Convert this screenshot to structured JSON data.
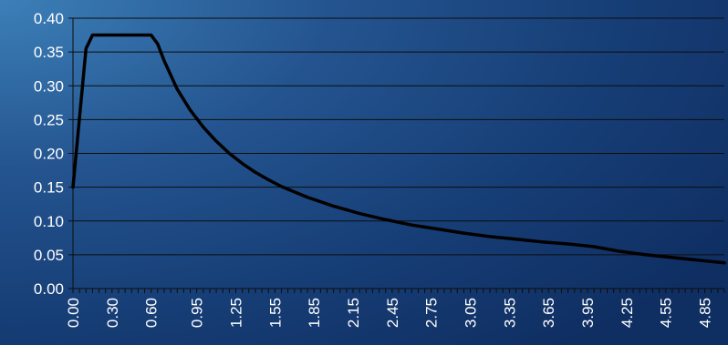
{
  "colors": {
    "line": "#000000",
    "grid": "#0d0d0d",
    "tick_text": "#ffffff",
    "background_light": "#3c7fb8",
    "background_dark": "#0f2f63"
  },
  "chart_data": {
    "type": "line",
    "title": "",
    "xlabel": "",
    "ylabel": "",
    "xlim": [
      0.0,
      5.0
    ],
    "ylim": [
      0.0,
      0.4
    ],
    "grid": "horizontal",
    "legend": "none",
    "y_ticks": [
      "0.00",
      "0.05",
      "0.10",
      "0.15",
      "0.20",
      "0.25",
      "0.30",
      "0.35",
      "0.40"
    ],
    "x_ticks": [
      "0.00",
      "0.30",
      "0.60",
      "0.95",
      "1.25",
      "1.55",
      "1.85",
      "2.15",
      "2.45",
      "2.75",
      "3.05",
      "3.35",
      "3.65",
      "3.95",
      "4.25",
      "4.55",
      "4.85"
    ],
    "x_tick_values": [
      0.0,
      0.3,
      0.6,
      0.95,
      1.25,
      1.55,
      1.85,
      2.15,
      2.45,
      2.75,
      3.05,
      3.35,
      3.65,
      3.95,
      4.25,
      4.55,
      4.85
    ],
    "series": [
      {
        "x": [
          0.0,
          0.1,
          0.15,
          0.2,
          0.3,
          0.4,
          0.5,
          0.6,
          0.65,
          0.7,
          0.8,
          0.9,
          1.0,
          1.1,
          1.2,
          1.3,
          1.4,
          1.5,
          1.6,
          1.8,
          2.0,
          2.2,
          2.4,
          2.6,
          2.8,
          3.0,
          3.2,
          3.4,
          3.6,
          3.8,
          4.0,
          4.2,
          4.4,
          4.6,
          4.8,
          5.0
        ],
        "y": [
          0.15,
          0.355,
          0.375,
          0.375,
          0.375,
          0.375,
          0.375,
          0.375,
          0.362,
          0.337,
          0.295,
          0.264,
          0.239,
          0.218,
          0.2,
          0.185,
          0.172,
          0.161,
          0.151,
          0.135,
          0.122,
          0.111,
          0.102,
          0.094,
          0.088,
          0.082,
          0.077,
          0.073,
          0.069,
          0.066,
          0.062,
          0.055,
          0.05,
          0.046,
          0.042,
          0.038
        ]
      }
    ]
  }
}
